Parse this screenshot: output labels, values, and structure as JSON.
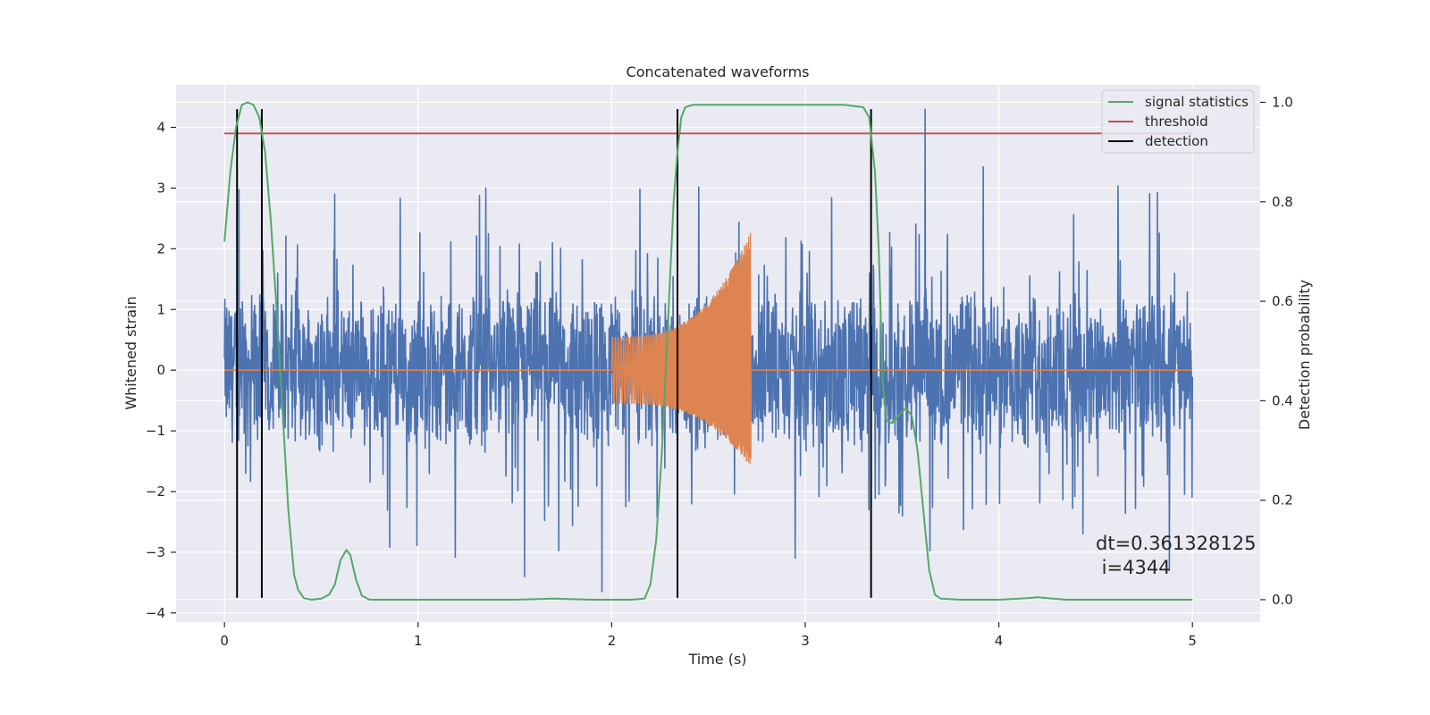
{
  "chart_data": {
    "type": "line",
    "title": "Concatenated waveforms",
    "xlabel": "Time (s)",
    "ylabel": "Whitened strain",
    "y2label": "Detection probability",
    "xlim": [
      -0.25,
      5.35
    ],
    "ylim": [
      -4.15,
      4.7
    ],
    "y2lim": [
      -0.045,
      1.035
    ],
    "x_ticks": [
      0,
      1,
      2,
      3,
      4,
      5
    ],
    "x_tick_labels": [
      "0",
      "1",
      "2",
      "3",
      "4",
      "5"
    ],
    "y_ticks": [
      -4,
      -3,
      -2,
      -1,
      0,
      1,
      2,
      3,
      4
    ],
    "y_tick_labels": [
      "−4",
      "−3",
      "−2",
      "−1",
      "0",
      "1",
      "2",
      "3",
      "4"
    ],
    "y2_ticks": [
      0.0,
      0.2,
      0.4,
      0.6,
      0.8,
      1.0
    ],
    "y2_tick_labels": [
      "0.0",
      "0.2",
      "0.4",
      "0.6",
      "0.8",
      "1.0"
    ],
    "grid": true,
    "legend_position": "top-right",
    "colors": {
      "background": "#eaeaf2",
      "grid": "#ffffff",
      "strain": "#4c72b0",
      "injection": "#dd8452",
      "signal": "#55a868",
      "threshold": "#c44e52",
      "detection": "#000000"
    },
    "series": [
      {
        "key": "strain",
        "axis": "left",
        "x_range": [
          0,
          5
        ],
        "sampling": "noise, amplitude approx. ±1.3 with peaks to about ±3",
        "peaks": [
          {
            "x": 3.62,
            "y": 4.3
          },
          {
            "x": 3.92,
            "y": 3.35
          },
          {
            "x": 1.95,
            "y": -3.65
          },
          {
            "x": 1.55,
            "y": -3.4
          },
          {
            "x": 0.57,
            "y": 2.9
          },
          {
            "x": 1.35,
            "y": 3.0
          },
          {
            "x": 4.88,
            "y": -3.3
          }
        ]
      },
      {
        "key": "injection",
        "axis": "left",
        "segments": [
          [
            0,
            2.0
          ],
          [
            3.0,
            5.0
          ]
        ],
        "chirp": {
          "start": 2.0,
          "end": 2.72,
          "amp_start": 0.55,
          "amp_end": 2.3,
          "amp_neg_end": -1.6,
          "ringdown_end": 2.75
        }
      },
      {
        "name": "signal statistics",
        "key": "signal",
        "axis": "right",
        "x": [
          0.0,
          0.03,
          0.06,
          0.09,
          0.12,
          0.15,
          0.18,
          0.21,
          0.24,
          0.27,
          0.3,
          0.33,
          0.36,
          0.38,
          0.41,
          0.45,
          0.5,
          0.54,
          0.57,
          0.6,
          0.63,
          0.65,
          0.68,
          0.71,
          0.75,
          0.9,
          1.2,
          1.5,
          1.7,
          1.9,
          2.1,
          2.17,
          2.2,
          2.23,
          2.26,
          2.29,
          2.32,
          2.34,
          2.36,
          2.38,
          2.42,
          2.6,
          2.9,
          3.2,
          3.3,
          3.33,
          3.36,
          3.38,
          3.4,
          3.42,
          3.45,
          3.48,
          3.52,
          3.55,
          3.58,
          3.61,
          3.64,
          3.67,
          3.7,
          3.8,
          4.0,
          4.15,
          4.2,
          4.25,
          4.35,
          5.0
        ],
        "y": [
          0.72,
          0.86,
          0.95,
          0.995,
          1.0,
          0.995,
          0.97,
          0.9,
          0.76,
          0.58,
          0.38,
          0.18,
          0.05,
          0.02,
          0.003,
          0.0,
          0.002,
          0.01,
          0.03,
          0.08,
          0.1,
          0.09,
          0.04,
          0.008,
          0.0,
          0.0,
          0.0,
          0.0,
          0.002,
          0.0,
          0.0,
          0.002,
          0.03,
          0.12,
          0.3,
          0.55,
          0.8,
          0.9,
          0.97,
          0.99,
          0.995,
          0.995,
          0.995,
          0.995,
          0.99,
          0.97,
          0.86,
          0.7,
          0.44,
          0.36,
          0.355,
          0.37,
          0.385,
          0.37,
          0.3,
          0.18,
          0.06,
          0.01,
          0.002,
          0.0,
          0.0,
          0.003,
          0.005,
          0.003,
          0.0,
          0.0
        ]
      },
      {
        "name": "threshold",
        "key": "threshold",
        "axis": "left",
        "x": [
          0,
          5
        ],
        "y": [
          3.9,
          3.9
        ]
      },
      {
        "name": "detection",
        "key": "detection",
        "axis": "left",
        "vlines": [
          0.065,
          0.193,
          2.34,
          3.34
        ],
        "ymin": -3.75,
        "ymax": 4.3
      }
    ],
    "annotations": [
      "dt=0.361328125",
      " i=4344"
    ],
    "annotation_position": {
      "x": 4.5,
      "y": -3.0
    }
  }
}
